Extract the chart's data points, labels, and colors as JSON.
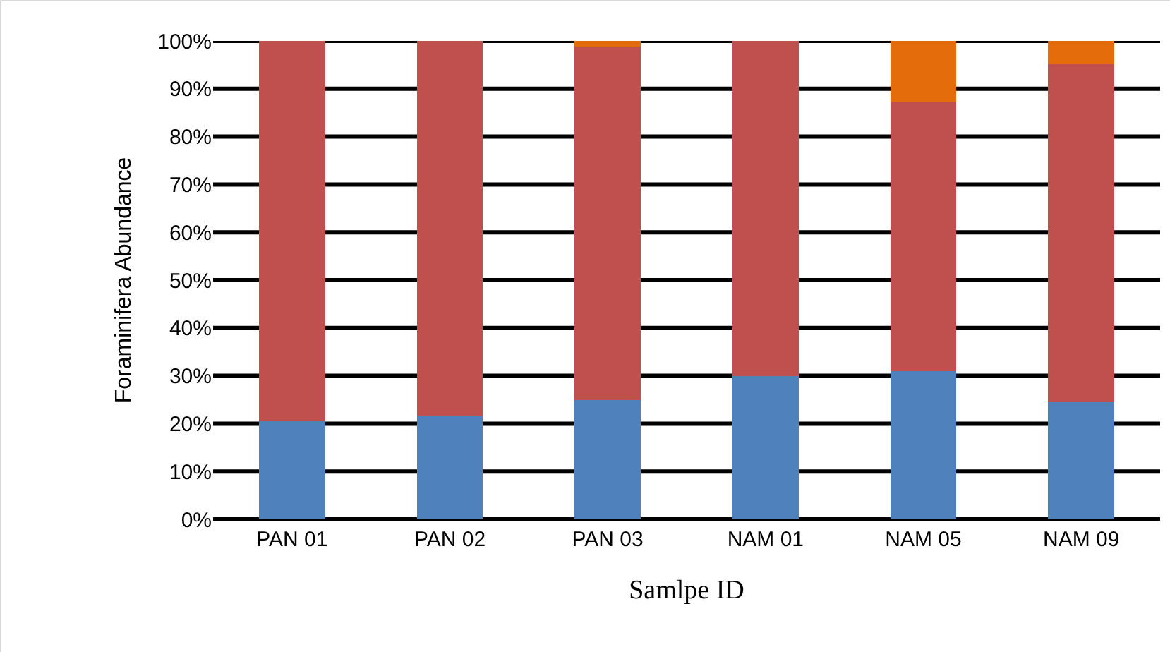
{
  "chart_data": {
    "type": "bar",
    "stacked": true,
    "xlabel": "Samlpe ID",
    "ylabel": "Foraminifera Abundance",
    "categories": [
      "PAN 01",
      "PAN 02",
      "PAN 03",
      "NAM 01",
      "NAM 05",
      "NAM 09"
    ],
    "series": [
      {
        "color": "#4f81bd",
        "values": [
          20.5,
          21.7,
          24.9,
          30,
          31,
          24.7
        ]
      },
      {
        "color": "#c0504d",
        "values": [
          79.5,
          78.3,
          73.9,
          70,
          56.3,
          70.4
        ]
      },
      {
        "color": "#e46c0a",
        "values": [
          0,
          0,
          1.2,
          0,
          12.7,
          4.9
        ]
      }
    ],
    "ylim": [
      0,
      100
    ],
    "yticks": [
      {
        "value": 0,
        "label": "0%"
      },
      {
        "value": 10,
        "label": "10%"
      },
      {
        "value": 20,
        "label": "20%"
      },
      {
        "value": 30,
        "label": "30%"
      },
      {
        "value": 40,
        "label": "40%"
      },
      {
        "value": 50,
        "label": "50%"
      },
      {
        "value": 60,
        "label": "60%"
      },
      {
        "value": 70,
        "label": "70%"
      },
      {
        "value": 80,
        "label": "80%"
      },
      {
        "value": 90,
        "label": "90%"
      },
      {
        "value": 100,
        "label": "100%"
      }
    ],
    "grid": "y"
  }
}
